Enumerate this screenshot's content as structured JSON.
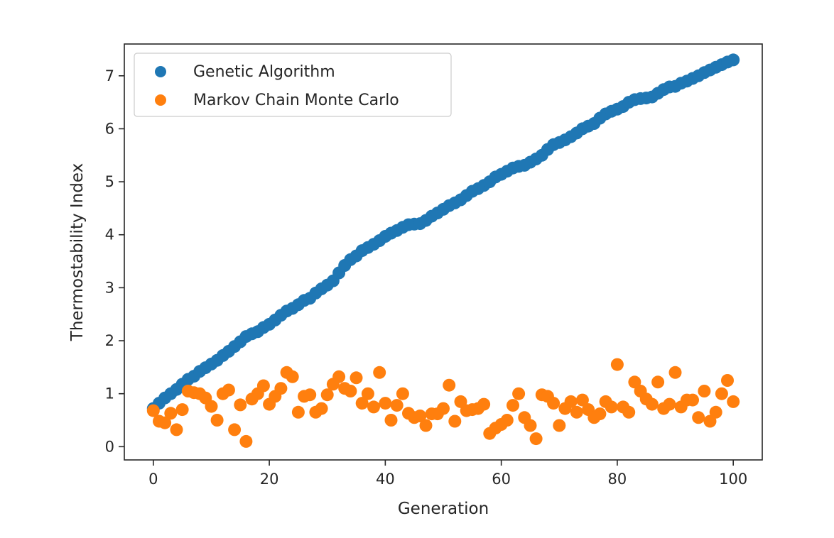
{
  "chart_data": {
    "type": "scatter",
    "title": "",
    "xlabel": "Generation",
    "ylabel": "Thermostability Index",
    "xlim": [
      -5,
      105
    ],
    "ylim": [
      -0.25,
      7.6
    ],
    "xticks": [
      0,
      20,
      40,
      60,
      80,
      100
    ],
    "yticks": [
      0,
      1,
      2,
      3,
      4,
      5,
      6,
      7
    ],
    "grid": false,
    "legend_position": "upper left",
    "series": [
      {
        "name": "Genetic Algorithm",
        "color": "#1f77b4",
        "x": [
          0,
          1,
          2,
          3,
          4,
          5,
          6,
          7,
          8,
          9,
          10,
          11,
          12,
          13,
          14,
          15,
          16,
          17,
          18,
          19,
          20,
          21,
          22,
          23,
          24,
          25,
          26,
          27,
          28,
          29,
          30,
          31,
          32,
          33,
          34,
          35,
          36,
          37,
          38,
          39,
          40,
          41,
          42,
          43,
          44,
          45,
          46,
          47,
          48,
          49,
          50,
          51,
          52,
          53,
          54,
          55,
          56,
          57,
          58,
          59,
          60,
          61,
          62,
          63,
          64,
          65,
          66,
          67,
          68,
          69,
          70,
          71,
          72,
          73,
          74,
          75,
          76,
          77,
          78,
          79,
          80,
          81,
          82,
          83,
          84,
          85,
          86,
          87,
          88,
          89,
          90,
          91,
          92,
          93,
          94,
          95,
          96,
          97,
          98,
          99,
          100
        ],
        "y": [
          0.72,
          0.82,
          0.92,
          1.0,
          1.08,
          1.18,
          1.27,
          1.33,
          1.42,
          1.49,
          1.56,
          1.63,
          1.72,
          1.8,
          1.89,
          1.98,
          2.08,
          2.13,
          2.17,
          2.25,
          2.31,
          2.39,
          2.48,
          2.56,
          2.61,
          2.68,
          2.76,
          2.8,
          2.9,
          2.98,
          3.05,
          3.13,
          3.28,
          3.42,
          3.53,
          3.6,
          3.7,
          3.76,
          3.82,
          3.89,
          3.97,
          4.03,
          4.08,
          4.14,
          4.19,
          4.2,
          4.21,
          4.27,
          4.35,
          4.41,
          4.48,
          4.55,
          4.6,
          4.66,
          4.74,
          4.82,
          4.87,
          4.93,
          5.0,
          5.09,
          5.14,
          5.2,
          5.26,
          5.29,
          5.31,
          5.37,
          5.43,
          5.5,
          5.61,
          5.7,
          5.74,
          5.79,
          5.85,
          5.92,
          6.0,
          6.05,
          6.1,
          6.2,
          6.28,
          6.33,
          6.37,
          6.42,
          6.5,
          6.55,
          6.57,
          6.58,
          6.6,
          6.67,
          6.74,
          6.79,
          6.8,
          6.86,
          6.9,
          6.95,
          7.0,
          7.06,
          7.11,
          7.16,
          7.21,
          7.26,
          7.3
        ]
      },
      {
        "name": "Markov Chain Monte Carlo",
        "color": "#ff7f0e",
        "x": [
          0,
          1,
          2,
          3,
          4,
          5,
          6,
          7,
          8,
          9,
          10,
          11,
          12,
          13,
          14,
          15,
          16,
          17,
          18,
          19,
          20,
          21,
          22,
          23,
          24,
          25,
          26,
          27,
          28,
          29,
          30,
          31,
          32,
          33,
          34,
          35,
          36,
          37,
          38,
          39,
          40,
          41,
          42,
          43,
          44,
          45,
          46,
          47,
          48,
          49,
          50,
          51,
          52,
          53,
          54,
          55,
          56,
          57,
          58,
          59,
          60,
          61,
          62,
          63,
          64,
          65,
          66,
          67,
          68,
          69,
          70,
          71,
          72,
          73,
          74,
          75,
          76,
          77,
          78,
          79,
          80,
          81,
          82,
          83,
          84,
          85,
          86,
          87,
          88,
          89,
          90,
          91,
          92,
          93,
          94,
          95,
          96,
          97,
          98,
          99,
          100
        ],
        "y": [
          0.68,
          0.48,
          0.45,
          0.63,
          0.32,
          0.7,
          1.05,
          1.02,
          1.0,
          0.92,
          0.76,
          0.5,
          1.0,
          1.07,
          0.32,
          0.79,
          0.1,
          0.9,
          1.0,
          1.15,
          0.8,
          0.95,
          1.1,
          1.4,
          1.32,
          0.65,
          0.95,
          0.98,
          0.65,
          0.72,
          0.98,
          1.18,
          1.32,
          1.1,
          1.05,
          1.3,
          0.82,
          1.0,
          0.75,
          1.4,
          0.82,
          0.5,
          0.78,
          1.0,
          0.63,
          0.55,
          0.58,
          0.4,
          0.62,
          0.62,
          0.72,
          1.16,
          0.48,
          0.85,
          0.68,
          0.7,
          0.72,
          0.8,
          0.25,
          0.35,
          0.42,
          0.5,
          0.78,
          1.0,
          0.55,
          0.4,
          0.15,
          0.98,
          0.95,
          0.82,
          0.4,
          0.72,
          0.85,
          0.65,
          0.88,
          0.7,
          0.55,
          0.62,
          0.85,
          0.75,
          1.55,
          0.75,
          0.65,
          1.22,
          1.05,
          0.9,
          0.8,
          1.22,
          0.72,
          0.8,
          1.4,
          0.75,
          0.88,
          0.88,
          0.55,
          1.05,
          0.48,
          0.65,
          1.0,
          1.25,
          0.85
        ]
      }
    ]
  }
}
